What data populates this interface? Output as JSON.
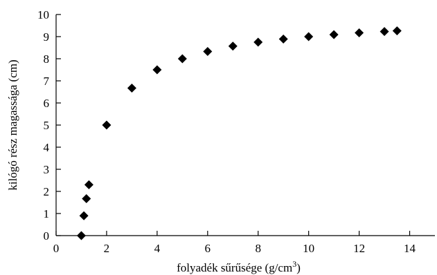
{
  "chart_data": {
    "type": "scatter",
    "title": "",
    "xlabel": "folyadék sűrűsége (g/cm",
    "xlabel_sup": "3",
    "xlabel_suffix": ")",
    "ylabel": "kilógó rész magassága (cm)",
    "xlim": [
      0,
      15
    ],
    "ylim": [
      0,
      10
    ],
    "x_ticks": [
      0,
      2,
      4,
      6,
      8,
      10,
      12,
      14
    ],
    "y_ticks": [
      0,
      1,
      2,
      3,
      4,
      5,
      6,
      7,
      8,
      9,
      10
    ],
    "grid": false,
    "legend": "none",
    "marker": "diamond",
    "marker_color": "#000000",
    "series": [
      {
        "x": [
          1.0,
          1.1,
          1.2,
          1.3,
          2,
          3,
          4,
          5,
          6,
          7,
          8,
          9,
          10,
          11,
          12,
          13,
          13.5
        ],
        "y": [
          0.0,
          0.9,
          1.67,
          2.3,
          5.0,
          6.67,
          7.5,
          8.0,
          8.33,
          8.57,
          8.75,
          8.89,
          9.0,
          9.09,
          9.17,
          9.23,
          9.26
        ]
      }
    ]
  }
}
